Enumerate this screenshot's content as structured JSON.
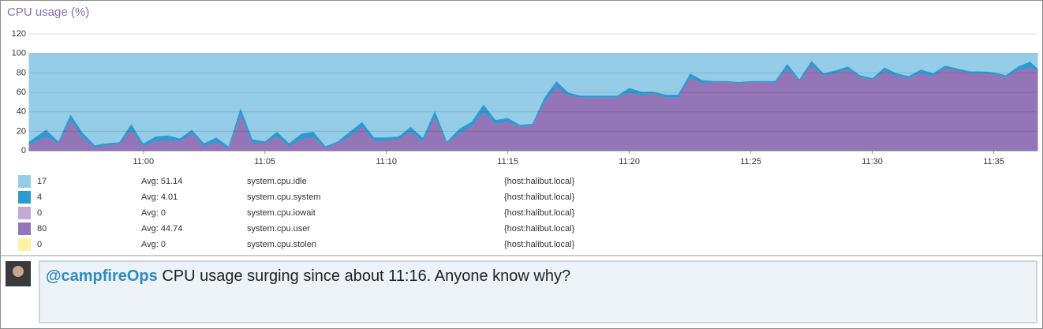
{
  "chart_data": {
    "type": "stacked_area",
    "title": "CPU usage (%)",
    "x": [
      -4.7,
      -4,
      -3.5,
      -3,
      -2.5,
      -2,
      -1.5,
      -1,
      -0.5,
      0,
      0.5,
      1,
      1.5,
      2,
      2.5,
      3,
      3.5,
      4,
      4.5,
      5,
      5.5,
      6,
      6.5,
      7,
      7.5,
      8,
      8.5,
      9,
      9.5,
      10,
      10.5,
      11,
      11.5,
      12,
      12.5,
      13,
      13.5,
      14,
      14.5,
      15,
      15.5,
      16,
      16.5,
      17,
      17.5,
      18,
      18.5,
      19,
      19.5,
      20,
      20.5,
      21,
      21.5,
      22,
      22.5,
      23,
      23.5,
      24,
      24.5,
      25,
      25.5,
      26,
      26.5,
      27,
      27.5,
      28,
      28.5,
      29,
      29.5,
      30,
      30.5,
      31,
      31.5,
      32,
      32.5,
      33,
      33.5,
      34,
      34.5,
      35,
      35.5,
      36,
      36.5,
      36.8
    ],
    "xlim": [
      -4.7,
      36.8
    ],
    "xticks": [
      {
        "value": 0,
        "label": "11:00"
      },
      {
        "value": 5,
        "label": "11:05"
      },
      {
        "value": 10,
        "label": "11:10"
      },
      {
        "value": 15,
        "label": "11:15"
      },
      {
        "value": 20,
        "label": "11:20"
      },
      {
        "value": 25,
        "label": "11:25"
      },
      {
        "value": 30,
        "label": "11:30"
      },
      {
        "value": 35,
        "label": "11:35"
      }
    ],
    "ylim": [
      0,
      125
    ],
    "yticks": [
      0,
      20,
      40,
      60,
      80,
      100,
      120
    ],
    "grid": true,
    "series": [
      {
        "name": "system.cpu.idle",
        "color": "#95cde8",
        "current": 17,
        "avg": "Avg: 51.14",
        "scope": "{host:halibut.local}",
        "values": [
          90,
          78,
          90,
          62,
          81,
          94,
          92,
          91,
          72,
          92,
          85,
          84,
          87,
          78,
          92,
          86,
          95,
          55,
          88,
          90,
          80,
          92,
          82,
          80,
          95,
          90,
          80,
          70,
          86,
          86,
          85,
          75,
          86,
          58,
          90,
          77,
          70,
          52,
          68,
          66,
          73,
          72,
          45,
          28,
          40,
          43,
          43,
          43,
          43,
          35,
          39,
          39,
          42,
          42,
          20,
          27,
          28,
          28,
          29,
          28,
          28,
          28,
          10,
          26,
          7,
          20,
          17,
          13,
          22,
          25,
          14,
          20,
          23,
          16,
          20,
          12,
          15,
          18,
          18,
          19,
          22,
          13,
          8,
          15
        ]
      },
      {
        "name": "system.cpu.system",
        "color": "#2e9ad0",
        "current": 4,
        "avg": "Avg: 4.01",
        "scope": "{host:halibut.local}",
        "values": [
          4,
          7,
          2,
          6,
          5,
          2,
          2,
          2,
          6,
          3,
          5,
          5,
          3,
          4,
          3,
          5,
          2,
          7,
          4,
          2,
          5,
          3,
          6,
          6,
          2,
          2,
          5,
          5,
          4,
          3,
          3,
          5,
          4,
          7,
          2,
          5,
          5,
          8,
          4,
          4,
          2,
          2,
          5,
          6,
          3,
          2,
          2,
          2,
          2,
          5,
          4,
          2,
          3,
          3,
          5,
          3,
          1,
          1,
          1,
          1,
          1,
          2,
          5,
          2,
          5,
          2,
          3,
          3,
          2,
          2,
          4,
          3,
          2,
          4,
          3,
          3,
          2,
          2,
          2,
          2,
          2,
          4,
          6,
          3
        ]
      },
      {
        "name": "system.cpu.iowait",
        "color": "#c3a9d6",
        "current": 0,
        "avg": "Avg: 0",
        "scope": "{host:halibut.local}",
        "values": [
          0,
          0,
          0,
          0,
          0,
          0,
          0,
          0,
          0,
          0,
          0,
          0,
          0,
          0,
          0,
          0,
          0,
          0,
          0,
          0,
          0,
          0,
          0,
          0,
          0,
          0,
          0,
          0,
          0,
          0,
          0,
          0,
          0,
          0,
          0,
          0,
          0,
          0,
          0,
          0,
          0,
          0,
          0,
          0,
          0,
          0,
          0,
          0,
          0,
          0,
          0,
          0,
          0,
          0,
          0,
          0,
          0,
          0,
          0,
          0,
          0,
          0,
          0,
          0,
          0,
          0,
          0,
          0,
          0,
          0,
          0,
          0,
          0,
          0,
          0,
          0,
          0,
          0,
          0,
          0,
          0,
          0,
          0,
          0
        ]
      },
      {
        "name": "system.cpu.user",
        "color": "#9476b8",
        "current": 80,
        "avg": "Avg: 44.74",
        "scope": "{host:halibut.local}",
        "values": [
          6,
          15,
          8,
          32,
          14,
          4,
          6,
          7,
          22,
          5,
          10,
          11,
          10,
          18,
          5,
          9,
          3,
          38,
          8,
          8,
          15,
          5,
          12,
          14,
          3,
          8,
          15,
          25,
          10,
          11,
          12,
          20,
          10,
          35,
          8,
          18,
          25,
          40,
          28,
          30,
          25,
          26,
          50,
          66,
          57,
          55,
          55,
          55,
          55,
          60,
          57,
          59,
          55,
          55,
          75,
          70,
          71,
          71,
          70,
          71,
          71,
          70,
          85,
          72,
          88,
          78,
          80,
          84,
          76,
          73,
          82,
          77,
          75,
          80,
          77,
          85,
          83,
          80,
          80,
          79,
          76,
          83,
          86,
          82
        ]
      },
      {
        "name": "system.cpu.stolen",
        "color": "#fdf2a4",
        "current": 0,
        "avg": "Avg: 0",
        "scope": "{host:halibut.local}",
        "values": [
          0,
          0,
          0,
          0,
          0,
          0,
          0,
          0,
          0,
          0,
          0,
          0,
          0,
          0,
          0,
          0,
          0,
          0,
          0,
          0,
          0,
          0,
          0,
          0,
          0,
          0,
          0,
          0,
          0,
          0,
          0,
          0,
          0,
          0,
          0,
          0,
          0,
          0,
          0,
          0,
          0,
          0,
          0,
          0,
          0,
          0,
          0,
          0,
          0,
          0,
          0,
          0,
          0,
          0,
          0,
          0,
          0,
          0,
          0,
          0,
          0,
          0,
          0,
          0,
          0,
          0,
          0,
          0,
          0,
          0,
          0,
          0,
          0,
          0,
          0,
          0,
          0,
          0,
          0,
          0,
          0,
          0,
          0,
          0
        ]
      }
    ]
  },
  "comment": {
    "mention": "@campfireOps",
    "text": " CPU usage surging since about 11:16. Anyone know why?"
  }
}
